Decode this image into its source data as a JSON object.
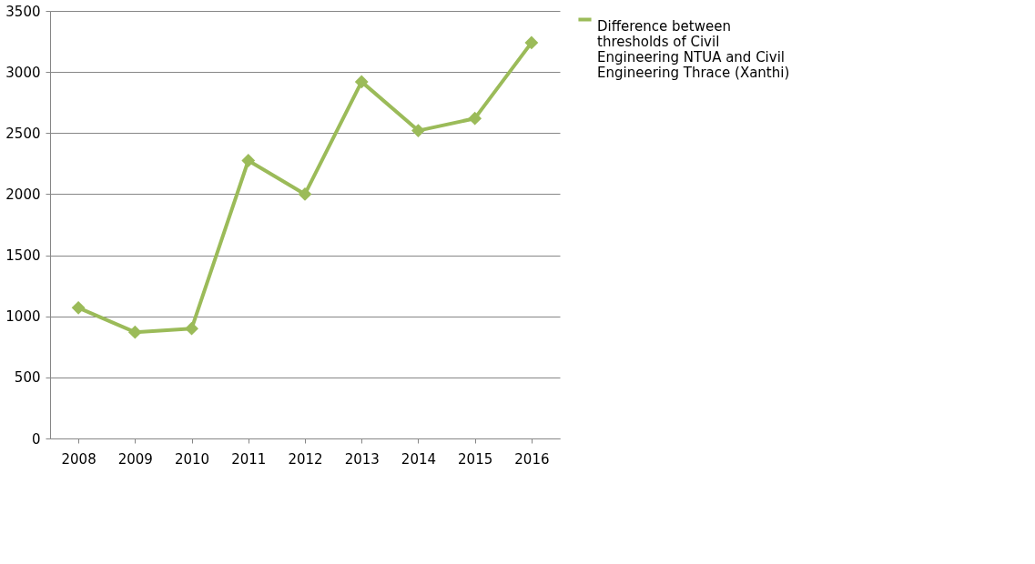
{
  "chart_data": {
    "type": "line",
    "categories": [
      "2008",
      "2009",
      "2010",
      "2011",
      "2012",
      "2013",
      "2014",
      "2015",
      "2016"
    ],
    "series": [
      {
        "name": "Difference between thresholds of Civil Engineering NTUA and Civil Engineering Thrace (Xanthi)",
        "color": "#9bbb59",
        "values": [
          1070,
          870,
          900,
          2275,
          2000,
          2920,
          2520,
          2620,
          3240
        ]
      }
    ],
    "ylim": [
      0,
      3500
    ],
    "yticks": [
      0,
      500,
      1000,
      1500,
      2000,
      2500,
      3000,
      3500
    ],
    "grid": "y",
    "legend": "right",
    "marker": "diamond",
    "line_style": "solid"
  }
}
